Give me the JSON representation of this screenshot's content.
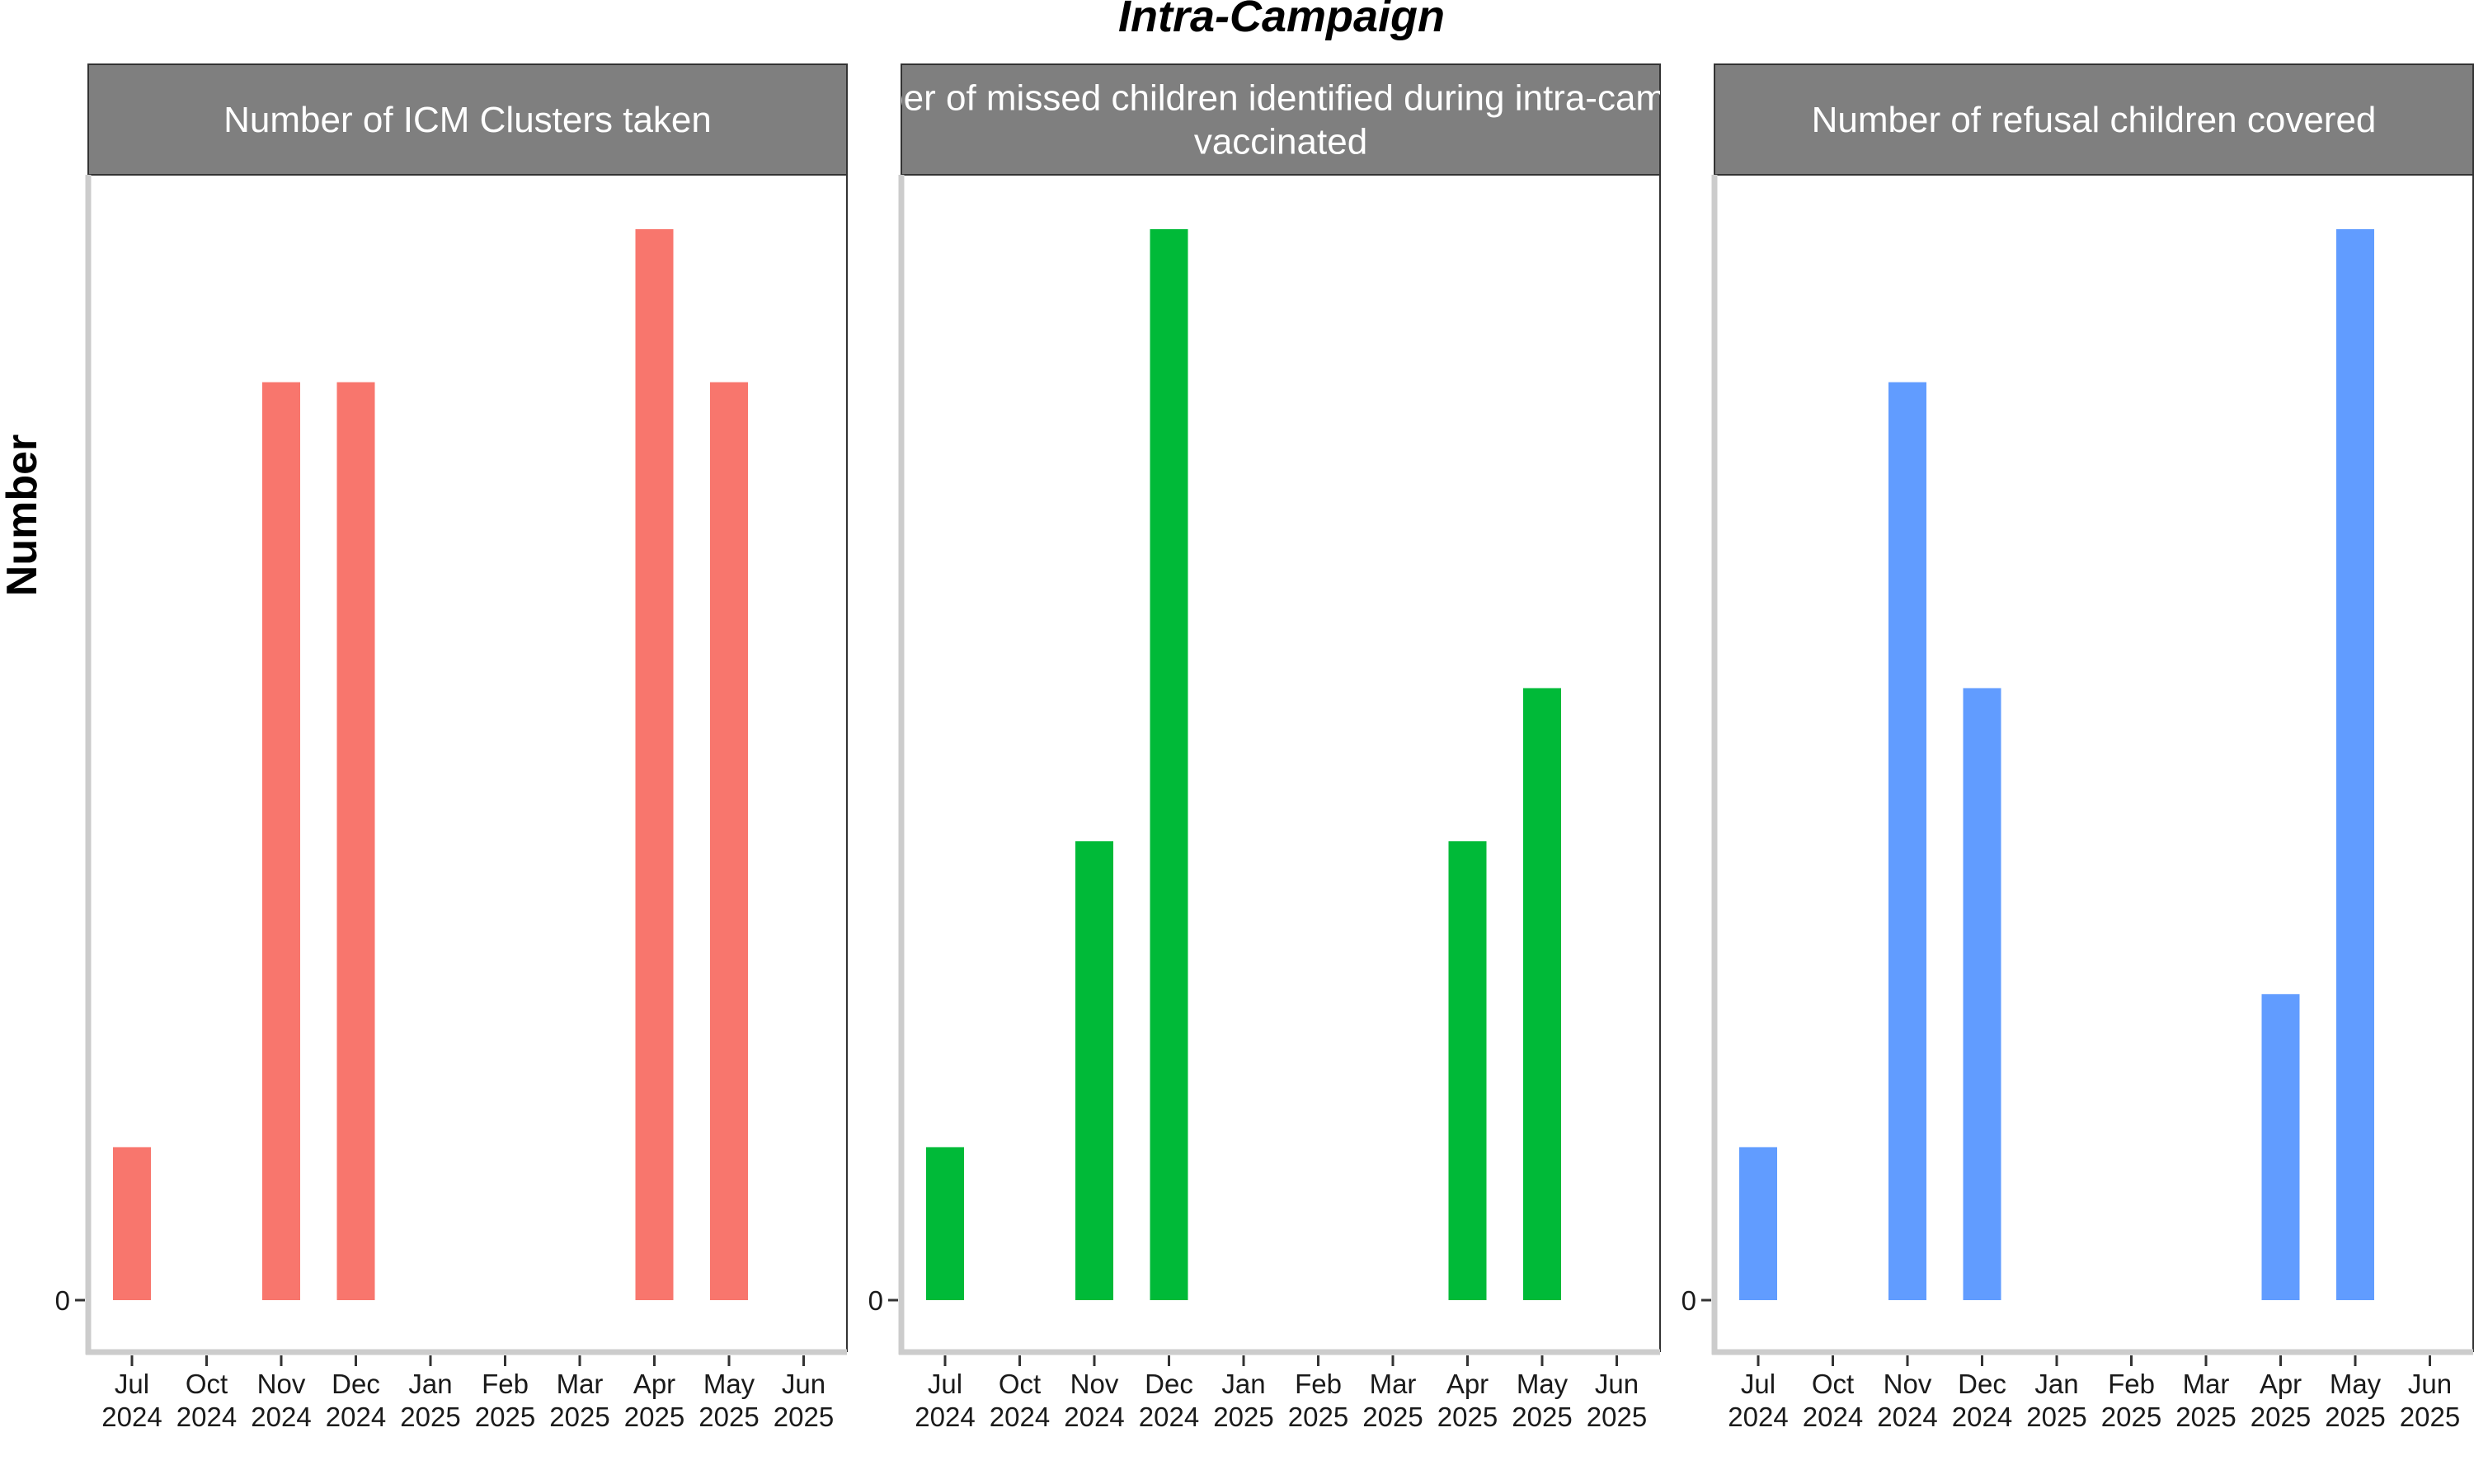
{
  "chart_data": {
    "type": "bar",
    "title": "Intra-Campaign",
    "ylabel": "Number",
    "xlabel": "",
    "categories": [
      "Jul 2024",
      "Oct 2024",
      "Nov 2024",
      "Dec 2024",
      "Jan 2025",
      "Feb 2025",
      "Mar 2025",
      "Apr 2025",
      "May 2025",
      "Jun 2025"
    ],
    "y_ticks": [
      "0"
    ],
    "ylim": [
      0,
      7
    ],
    "grid": false,
    "panels": [
      {
        "strip_label_lines": [
          "Number of ICM Clusters taken"
        ],
        "color": "#F8766D",
        "values": [
          1,
          0,
          6,
          6,
          0,
          0,
          0,
          7,
          6,
          0
        ]
      },
      {
        "strip_label_lines": [
          "Number of missed children identified during intra-campaign",
          "vaccinated"
        ],
        "color": "#00BA38",
        "values": [
          1,
          0,
          3,
          7,
          0,
          0,
          0,
          3,
          4,
          0
        ]
      },
      {
        "strip_label_lines": [
          "Number of refusal children covered"
        ],
        "color": "#619CFF",
        "values": [
          1,
          0,
          6,
          4,
          0,
          0,
          0,
          2,
          7,
          0
        ]
      }
    ]
  }
}
